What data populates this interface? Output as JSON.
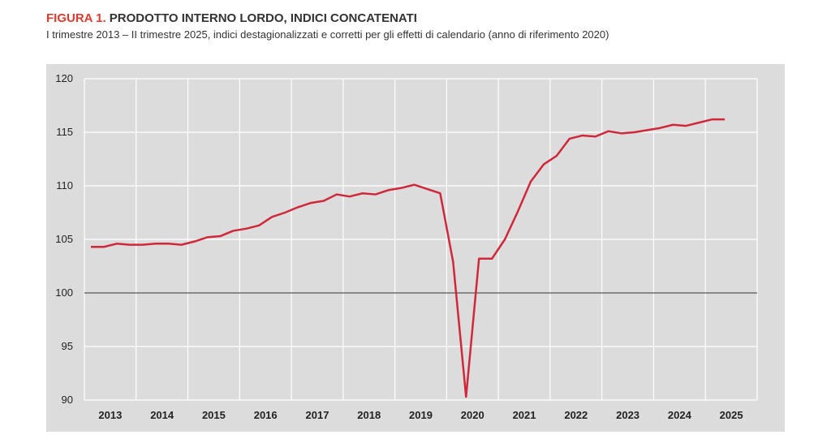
{
  "header": {
    "figure_label": "FIGURA 1.",
    "title": "PRODOTTO INTERNO LORDO, INDICI CONCATENATI",
    "subtitle": "I trimestre 2013 – II trimestre 2025, indici destagionalizzati e corretti per gli effetti di calendario (anno di riferimento 2020)"
  },
  "chart_data": {
    "type": "line",
    "title": "PRODOTTO INTERNO LORDO, INDICI CONCATENATI",
    "xlabel": "",
    "ylabel": "",
    "ylim": [
      90,
      120
    ],
    "yticks": [
      90,
      95,
      100,
      105,
      110,
      115,
      120
    ],
    "x_ticks": [
      "2013",
      "2014",
      "2015",
      "2016",
      "2017",
      "2018",
      "2019",
      "2020",
      "2021",
      "2022",
      "2023",
      "2024",
      "2025"
    ],
    "grid": true,
    "reference_line": 100,
    "line_color": "#d0283a",
    "x": [
      "2013 T1",
      "2013 T2",
      "2013 T3",
      "2013 T4",
      "2014 T1",
      "2014 T2",
      "2014 T3",
      "2014 T4",
      "2015 T1",
      "2015 T2",
      "2015 T3",
      "2015 T4",
      "2016 T1",
      "2016 T2",
      "2016 T3",
      "2016 T4",
      "2017 T1",
      "2017 T2",
      "2017 T3",
      "2017 T4",
      "2018 T1",
      "2018 T2",
      "2018 T3",
      "2018 T4",
      "2019 T1",
      "2019 T2",
      "2019 T3",
      "2019 T4",
      "2020 T1",
      "2020 T2",
      "2020 T3",
      "2020 T4",
      "2021 T1",
      "2021 T2",
      "2021 T3",
      "2021 T4",
      "2022 T1",
      "2022 T2",
      "2022 T3",
      "2022 T4",
      "2023 T1",
      "2023 T2",
      "2023 T3",
      "2023 T4",
      "2024 T1",
      "2024 T2",
      "2024 T3",
      "2024 T4",
      "2025 T1",
      "2025 T2"
    ],
    "series": [
      {
        "values": [
          104.3,
          104.3,
          104.6,
          104.5,
          104.5,
          104.6,
          104.6,
          104.5,
          104.8,
          105.2,
          105.3,
          105.8,
          106.0,
          106.3,
          107.1,
          107.5,
          108.0,
          108.4,
          108.6,
          109.2,
          109.0,
          109.3,
          109.2,
          109.6,
          109.8,
          110.1,
          109.7,
          109.3,
          102.9,
          90.3,
          103.2,
          103.2,
          105.0,
          107.6,
          110.4,
          112.0,
          112.8,
          114.4,
          114.7,
          114.6,
          115.1,
          114.9,
          115.0,
          115.2,
          115.4,
          115.7,
          115.6,
          115.9,
          116.2,
          116.2
        ]
      }
    ]
  }
}
